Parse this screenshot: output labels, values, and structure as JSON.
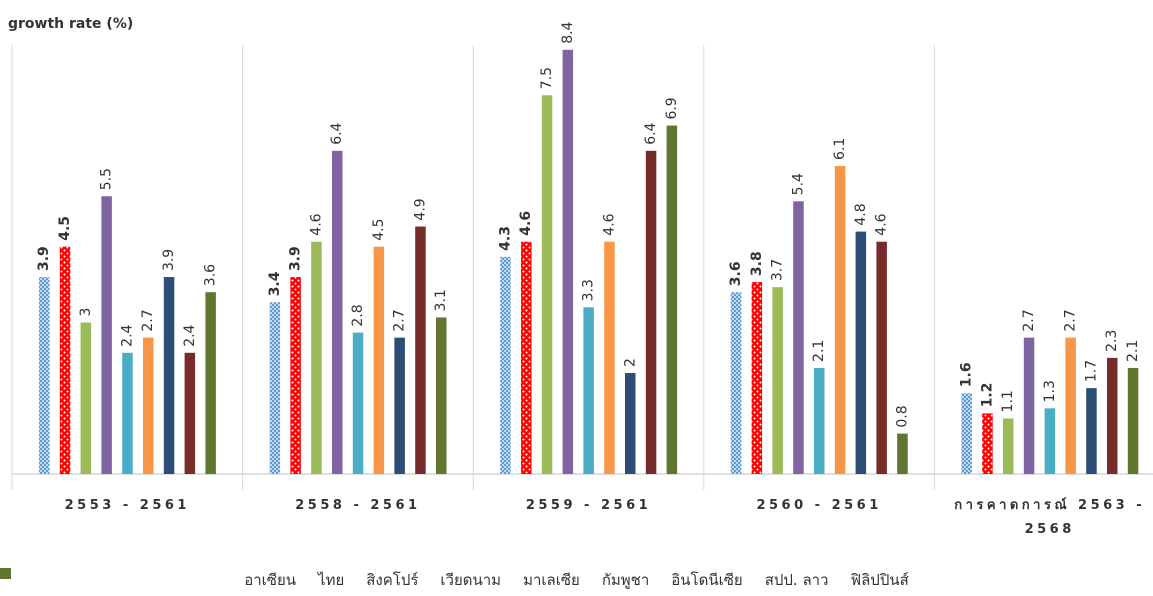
{
  "chart_data": {
    "type": "bar",
    "y_label": "growth rate (%)",
    "categories": [
      "2553 - 2561",
      "2558 - 2561",
      "2559 - 2561",
      "2560 - 2561",
      "การคาดการณ์ 2563 - 2568"
    ],
    "series": [
      {
        "name": "อาเซียน",
        "color": "#8DB4E2",
        "pattern": "checker",
        "values": [
          3.9,
          3.4,
          4.3,
          3.6,
          1.6
        ]
      },
      {
        "name": "ไทย",
        "color": "#FF0000",
        "pattern": "dots",
        "values": [
          4.5,
          3.9,
          4.6,
          3.8,
          1.2
        ]
      },
      {
        "name": "สิงคโปร์",
        "color": "#9BBB59",
        "values": [
          3,
          4.6,
          7.5,
          3.7,
          1.1
        ]
      },
      {
        "name": "เวียดนาม",
        "color": "#8064A2",
        "values": [
          5.5,
          6.4,
          8.4,
          5.4,
          2.7
        ]
      },
      {
        "name": "มาเลเซีย",
        "color": "#4BACC6",
        "values": [
          2.4,
          2.8,
          3.3,
          2.1,
          1.3
        ]
      },
      {
        "name": "กัมพูชา",
        "color": "#F79646",
        "values": [
          2.7,
          4.5,
          4.6,
          6.1,
          2.7
        ]
      },
      {
        "name": "อินโดนีเซีย",
        "color": "#2C4D75",
        "values": [
          3.9,
          2.7,
          2,
          4.8,
          1.7
        ]
      },
      {
        "name": "สปป. ลาว",
        "color": "#772C2A",
        "values": [
          2.4,
          4.9,
          6.4,
          4.6,
          2.3
        ]
      },
      {
        "name": "ฟิลิปปินส์",
        "color": "#5F7530",
        "values": [
          3.6,
          3.1,
          6.9,
          0.8,
          2.1
        ]
      }
    ],
    "bold_labels": [
      "อาเซียน",
      "ไทย"
    ]
  }
}
